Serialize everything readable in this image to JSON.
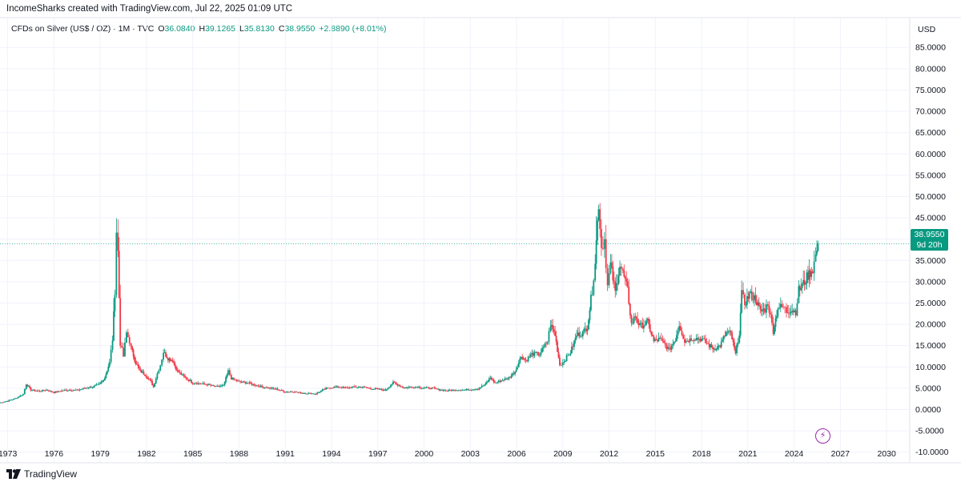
{
  "header": {
    "author_line": "IncomeSharks created with TradingView.com, Jul 22, 2025 01:09 UTC"
  },
  "legend": {
    "symbol_line": "CFDs on Silver (US$ / OZ) · 1M · TVC",
    "open_label": "O",
    "open": "36.0840",
    "high_label": "H",
    "high": "39.1265",
    "low_label": "L",
    "low": "35.8130",
    "close_label": "C",
    "close": "38.9550",
    "change": "+2.8890 (+8.01%)"
  },
  "price_axis": {
    "currency": "USD",
    "current_price": "38.9550",
    "countdown": "9d 20h"
  },
  "footer": {
    "brand": "TradingView"
  },
  "colors": {
    "up": "#089981",
    "down": "#f23645",
    "text": "#131722",
    "grid": "#f0f3fa",
    "marker": "#9c27b0"
  },
  "chart_data": {
    "type": "candlestick",
    "title": "CFDs on Silver (US$ / OZ) · 1M · TVC",
    "ylabel": "USD",
    "ylim": [
      -12.5,
      92
    ],
    "xlim": [
      1972.5,
      2031.5
    ],
    "x_ticks": [
      "1973",
      "1976",
      "1979",
      "1982",
      "1985",
      "1988",
      "1991",
      "1994",
      "1997",
      "2000",
      "2003",
      "2006",
      "2009",
      "2012",
      "2015",
      "2018",
      "2021",
      "2024",
      "2027",
      "2030"
    ],
    "y_ticks": [
      "-10.0000",
      "-5.0000",
      "0.0000",
      "5.0000",
      "10.0000",
      "15.0000",
      "20.0000",
      "25.0000",
      "30.0000",
      "35.0000",
      "40.0000",
      "45.0000",
      "50.0000",
      "55.0000",
      "60.0000",
      "65.0000",
      "70.0000",
      "75.0000",
      "80.0000",
      "85.0000"
    ],
    "current": 38.955,
    "series": [
      {
        "values": [
          [
            1972.5,
            1.6
          ],
          [
            1973.0,
            2.0
          ],
          [
            1973.5,
            2.6
          ],
          [
            1974.0,
            3.6
          ],
          [
            1974.2,
            6.0
          ],
          [
            1974.5,
            4.6
          ],
          [
            1975.0,
            4.3
          ],
          [
            1975.5,
            4.6
          ],
          [
            1976.0,
            4.0
          ],
          [
            1976.5,
            4.4
          ],
          [
            1977.0,
            4.6
          ],
          [
            1977.5,
            4.5
          ],
          [
            1978.0,
            5.0
          ],
          [
            1978.5,
            5.3
          ],
          [
            1979.0,
            6.0
          ],
          [
            1979.3,
            7.5
          ],
          [
            1979.6,
            11.0
          ],
          [
            1979.8,
            16.5
          ],
          [
            1979.95,
            28.0
          ],
          [
            1980.05,
            42.0
          ],
          [
            1980.15,
            37.0
          ],
          [
            1980.3,
            15.5
          ],
          [
            1980.5,
            12.5
          ],
          [
            1980.7,
            18.0
          ],
          [
            1980.9,
            16.0
          ],
          [
            1981.0,
            14.5
          ],
          [
            1981.3,
            11.0
          ],
          [
            1981.6,
            9.0
          ],
          [
            1981.9,
            8.2
          ],
          [
            1982.3,
            6.5
          ],
          [
            1982.45,
            5.3
          ],
          [
            1982.7,
            8.5
          ],
          [
            1982.9,
            10.5
          ],
          [
            1983.1,
            13.5
          ],
          [
            1983.4,
            12.0
          ],
          [
            1983.7,
            11.5
          ],
          [
            1984.0,
            9.0
          ],
          [
            1984.5,
            7.5
          ],
          [
            1985.0,
            6.3
          ],
          [
            1985.5,
            6.1
          ],
          [
            1986.0,
            5.8
          ],
          [
            1986.5,
            5.3
          ],
          [
            1987.0,
            5.6
          ],
          [
            1987.3,
            9.0
          ],
          [
            1987.5,
            7.3
          ],
          [
            1988.0,
            6.5
          ],
          [
            1988.5,
            6.3
          ],
          [
            1989.0,
            5.8
          ],
          [
            1989.5,
            5.3
          ],
          [
            1990.0,
            5.0
          ],
          [
            1990.5,
            4.7
          ],
          [
            1991.0,
            4.1
          ],
          [
            1991.5,
            4.2
          ],
          [
            1992.0,
            3.9
          ],
          [
            1992.5,
            3.8
          ],
          [
            1993.0,
            3.7
          ],
          [
            1993.4,
            4.5
          ],
          [
            1993.8,
            5.1
          ],
          [
            1994.0,
            5.2
          ],
          [
            1994.5,
            5.3
          ],
          [
            1995.0,
            5.0
          ],
          [
            1995.5,
            5.3
          ],
          [
            1996.0,
            5.3
          ],
          [
            1996.5,
            4.9
          ],
          [
            1997.0,
            4.8
          ],
          [
            1997.5,
            4.5
          ],
          [
            1998.0,
            6.3
          ],
          [
            1998.3,
            5.8
          ],
          [
            1998.7,
            5.1
          ],
          [
            1999.0,
            5.2
          ],
          [
            1999.5,
            5.3
          ],
          [
            2000.0,
            5.1
          ],
          [
            2000.5,
            5.0
          ],
          [
            2001.0,
            4.6
          ],
          [
            2001.5,
            4.4
          ],
          [
            2002.0,
            4.6
          ],
          [
            2002.5,
            4.6
          ],
          [
            2003.0,
            4.7
          ],
          [
            2003.5,
            4.9
          ],
          [
            2004.0,
            6.0
          ],
          [
            2004.3,
            7.5
          ],
          [
            2004.6,
            6.2
          ],
          [
            2005.0,
            6.8
          ],
          [
            2005.5,
            7.4
          ],
          [
            2005.9,
            8.9
          ],
          [
            2006.3,
            12.5
          ],
          [
            2006.6,
            11.5
          ],
          [
            2007.0,
            13.0
          ],
          [
            2007.5,
            13.0
          ],
          [
            2008.0,
            16.0
          ],
          [
            2008.2,
            20.0
          ],
          [
            2008.5,
            17.5
          ],
          [
            2008.8,
            10.5
          ],
          [
            2009.0,
            11.0
          ],
          [
            2009.5,
            13.5
          ],
          [
            2009.9,
            17.5
          ],
          [
            2010.3,
            18.0
          ],
          [
            2010.6,
            19.5
          ],
          [
            2010.9,
            28.0
          ],
          [
            2011.1,
            35.0
          ],
          [
            2011.32,
            48.5
          ],
          [
            2011.5,
            38.0
          ],
          [
            2011.7,
            40.0
          ],
          [
            2011.9,
            29.0
          ],
          [
            2012.1,
            34.0
          ],
          [
            2012.4,
            27.5
          ],
          [
            2012.7,
            34.0
          ],
          [
            2012.9,
            32.0
          ],
          [
            2013.2,
            28.0
          ],
          [
            2013.45,
            20.0
          ],
          [
            2013.7,
            22.0
          ],
          [
            2014.0,
            19.5
          ],
          [
            2014.5,
            20.5
          ],
          [
            2014.9,
            16.0
          ],
          [
            2015.3,
            16.5
          ],
          [
            2015.9,
            14.0
          ],
          [
            2016.3,
            16.5
          ],
          [
            2016.55,
            20.0
          ],
          [
            2016.9,
            16.0
          ],
          [
            2017.5,
            16.8
          ],
          [
            2018.0,
            16.5
          ],
          [
            2018.5,
            15.0
          ],
          [
            2018.8,
            14.3
          ],
          [
            2019.2,
            15.0
          ],
          [
            2019.6,
            18.0
          ],
          [
            2019.9,
            17.8
          ],
          [
            2020.2,
            13.0
          ],
          [
            2020.45,
            18.0
          ],
          [
            2020.6,
            27.0
          ],
          [
            2020.8,
            25.0
          ],
          [
            2021.1,
            27.0
          ],
          [
            2021.5,
            26.0
          ],
          [
            2021.8,
            23.0
          ],
          [
            2022.1,
            23.5
          ],
          [
            2022.3,
            25.0
          ],
          [
            2022.65,
            18.5
          ],
          [
            2022.95,
            24.0
          ],
          [
            2023.3,
            24.0
          ],
          [
            2023.5,
            23.0
          ],
          [
            2023.8,
            23.5
          ],
          [
            2024.1,
            23.0
          ],
          [
            2024.3,
            28.0
          ],
          [
            2024.6,
            29.5
          ],
          [
            2024.9,
            31.5
          ],
          [
            2025.2,
            33.0
          ],
          [
            2025.4,
            36.0
          ],
          [
            2025.55,
            38.955
          ]
        ]
      }
    ]
  }
}
